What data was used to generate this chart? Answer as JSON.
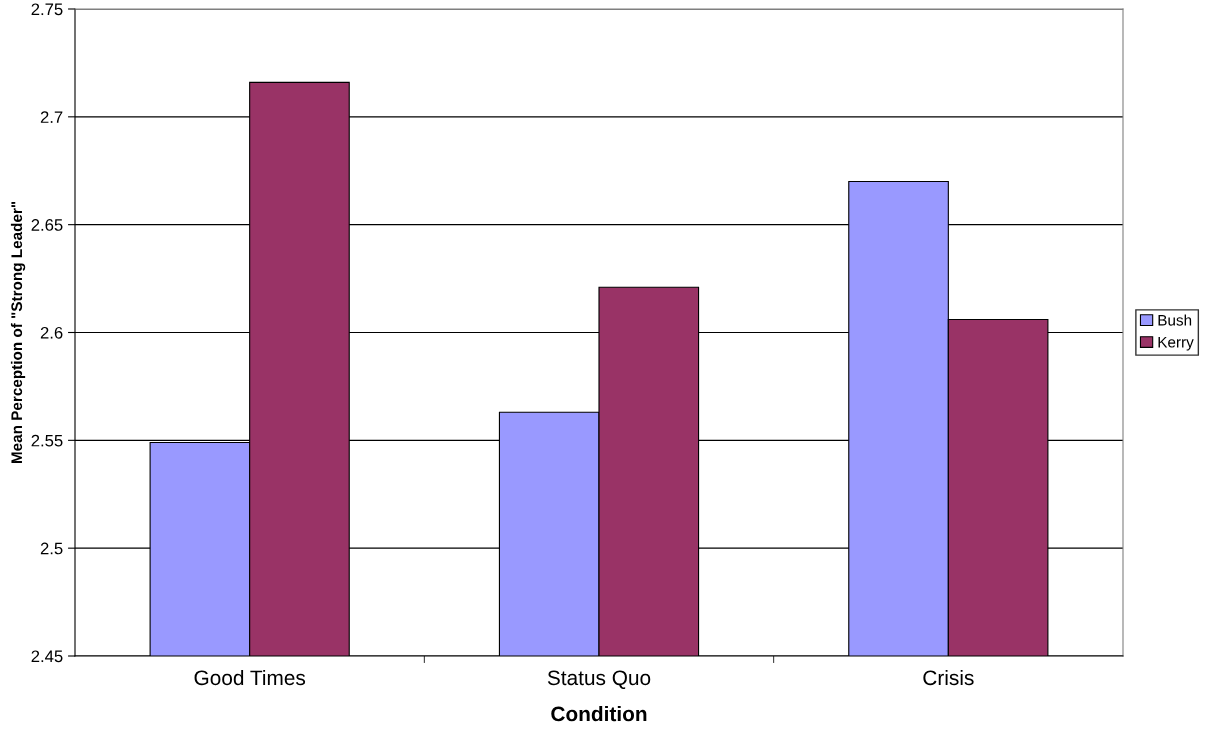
{
  "chart_data": {
    "type": "bar",
    "xlabel": "Condition",
    "ylabel": "Mean Perception of \"Strong Leader\"",
    "categories": [
      "Good Times",
      "Status Quo",
      "Crisis"
    ],
    "series": [
      {
        "name": "Bush",
        "color": "#9999ff",
        "values": [
          2.549,
          2.563,
          2.67
        ]
      },
      {
        "name": "Kerry",
        "color": "#993366",
        "values": [
          2.716,
          2.621,
          2.606
        ]
      }
    ],
    "ylim": [
      2.45,
      2.75
    ],
    "yticks": [
      2.45,
      2.5,
      2.55,
      2.6,
      2.65,
      2.7,
      2.75
    ],
    "grid": "y",
    "legend": "right"
  }
}
